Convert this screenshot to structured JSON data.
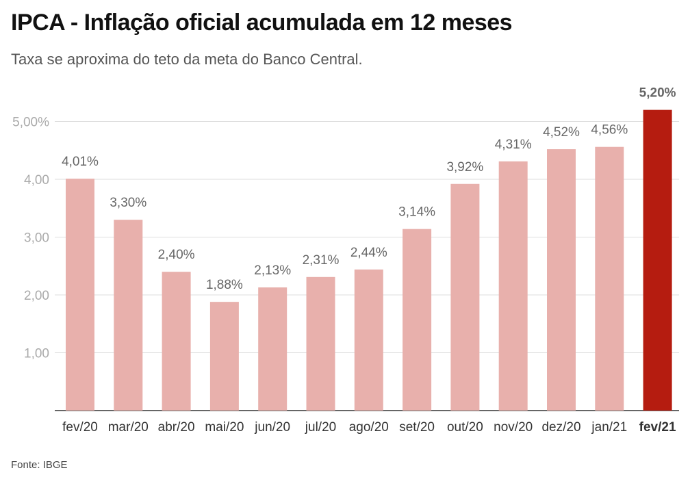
{
  "title": "IPCA - Inflação oficial acumulada em 12 meses",
  "subtitle": "Taxa se aproxima do teto da meta do Banco Central.",
  "source": "Fonte: IBGE",
  "colors": {
    "bar": "#e8b0ac",
    "highlight": "#b51c10",
    "grid": "#dddddd",
    "tick": "#aaaaaa",
    "label": "#666666"
  },
  "chart_data": {
    "type": "bar",
    "categories": [
      "fev/20",
      "mar/20",
      "abr/20",
      "mai/20",
      "jun/20",
      "jul/20",
      "ago/20",
      "set/20",
      "out/20",
      "nov/20",
      "dez/20",
      "jan/21",
      "fev/21"
    ],
    "values": [
      4.01,
      3.3,
      2.4,
      1.88,
      2.13,
      2.31,
      2.44,
      3.14,
      3.92,
      4.31,
      4.52,
      4.56,
      5.2
    ],
    "value_labels": [
      "4,01%",
      "3,30%",
      "2,40%",
      "1,88%",
      "2,13%",
      "2,31%",
      "2,44%",
      "3,14%",
      "3,92%",
      "4,31%",
      "4,52%",
      "4,56%",
      "5,20%"
    ],
    "highlight_index": 12,
    "yticks": [
      1,
      2,
      3,
      4,
      5
    ],
    "ytick_labels": [
      "1,00",
      "2,00",
      "3,00",
      "4,00",
      "5,00%"
    ],
    "ylim": [
      0,
      5.2
    ],
    "grid": true
  }
}
